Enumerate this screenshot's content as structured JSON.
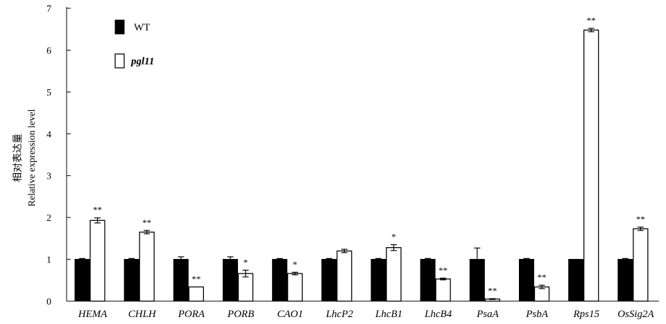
{
  "chart_data": {
    "type": "bar",
    "title": "",
    "xlabel": "",
    "ylabel_cn": "相对表达量",
    "ylabel": "Relative expression level",
    "ylim": [
      0,
      7
    ],
    "yticks": [
      "0",
      "1",
      "2",
      "3",
      "4",
      "5",
      "6",
      "7"
    ],
    "legend_position": "top-left",
    "categories": [
      "HEMA",
      "CHLH",
      "PORA",
      "PORB",
      "CAO1",
      "LhcP2",
      "LhcB1",
      "LhcB4",
      "PsaA",
      "PsbA",
      "Rps15",
      "OsSig2A"
    ],
    "series": [
      {
        "name": "WT",
        "style": "filled",
        "color": "#000000",
        "values": [
          1.0,
          1.0,
          1.0,
          1.0,
          1.0,
          1.0,
          1.0,
          1.0,
          1.0,
          1.0,
          1.0,
          1.0
        ],
        "errors": [
          0.02,
          0.02,
          0.06,
          0.06,
          0.02,
          0.02,
          0.02,
          0.02,
          0.27,
          0.02,
          0.0,
          0.02
        ]
      },
      {
        "name": "pgl11",
        "style": "open",
        "color": "#ffffff",
        "values": [
          1.93,
          1.65,
          0.34,
          0.66,
          0.66,
          1.2,
          1.28,
          0.53,
          0.05,
          0.34,
          6.48,
          1.73
        ],
        "errors": [
          0.06,
          0.04,
          0.0,
          0.08,
          0.03,
          0.04,
          0.07,
          0.02,
          0.01,
          0.04,
          0.04,
          0.04
        ],
        "significance": [
          "**",
          "**",
          "**",
          "*",
          "*",
          "",
          "*",
          "**",
          "**",
          "**",
          "**",
          "**"
        ]
      }
    ]
  }
}
